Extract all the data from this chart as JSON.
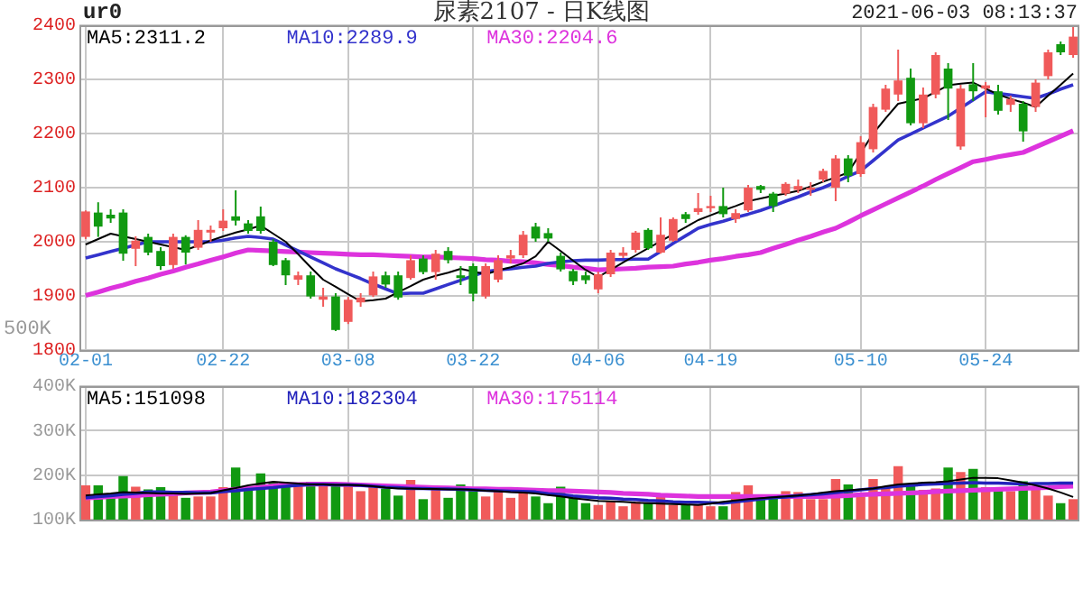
{
  "chart_data": [
    {
      "type": "candlestick",
      "title": "尿素2107 - 日K线图",
      "subtitle": "ur0",
      "annotations": [
        "2021-06-03 08:13:37",
        "500K"
      ],
      "categories": [
        "02-01",
        null,
        null,
        null,
        null,
        null,
        null,
        null,
        null,
        null,
        null,
        "02-22",
        null,
        null,
        null,
        null,
        null,
        null,
        null,
        null,
        null,
        "03-08",
        null,
        null,
        null,
        null,
        null,
        null,
        null,
        null,
        null,
        "03-22",
        null,
        null,
        null,
        null,
        null,
        null,
        null,
        null,
        null,
        "04-06",
        null,
        null,
        null,
        null,
        null,
        null,
        null,
        null,
        "04-19",
        null,
        null,
        null,
        null,
        null,
        null,
        null,
        null,
        null,
        null,
        null,
        "05-10",
        null,
        null,
        null,
        null,
        null,
        null,
        null,
        null,
        null,
        "05-24",
        null,
        null,
        null,
        null,
        null,
        null,
        null
      ],
      "ohlc": [
        [
          2009,
          2058,
          2005,
          2056
        ],
        [
          2054,
          2073,
          2009,
          2028
        ],
        [
          2050,
          2060,
          2035,
          2043
        ],
        [
          2054,
          2060,
          1965,
          1978
        ],
        [
          1987,
          2010,
          1955,
          2002
        ],
        [
          2009,
          2015,
          1975,
          1980
        ],
        [
          1983,
          1990,
          1948,
          1955
        ],
        [
          1957,
          2015,
          1950,
          2009
        ],
        [
          2009,
          2012,
          1958,
          1980
        ],
        [
          1989,
          2040,
          1985,
          2022
        ],
        [
          2017,
          2030,
          2000,
          2022
        ],
        [
          2025,
          2060,
          2020,
          2039
        ],
        [
          2047,
          2095,
          2030,
          2039
        ],
        [
          2034,
          2040,
          2015,
          2020
        ],
        [
          2047,
          2065,
          2015,
          2020
        ],
        [
          2000,
          2005,
          1955,
          1957
        ],
        [
          1966,
          1970,
          1920,
          1938
        ],
        [
          1930,
          1945,
          1920,
          1938
        ],
        [
          1938,
          1945,
          1895,
          1899
        ],
        [
          1893,
          1915,
          1880,
          1899
        ],
        [
          1899,
          1905,
          1835,
          1837
        ],
        [
          1852,
          1898,
          1848,
          1893
        ],
        [
          1888,
          1905,
          1880,
          1897
        ],
        [
          1901,
          1945,
          1898,
          1936
        ],
        [
          1938,
          1945,
          1915,
          1921
        ],
        [
          1938,
          1945,
          1893,
          1897
        ],
        [
          1933,
          1975,
          1930,
          1966
        ],
        [
          1969,
          1975,
          1940,
          1944
        ],
        [
          1944,
          1985,
          1930,
          1978
        ],
        [
          1983,
          1990,
          1960,
          1966
        ],
        [
          1938,
          1955,
          1920,
          1933
        ],
        [
          1955,
          1960,
          1890,
          1904
        ],
        [
          1899,
          1960,
          1895,
          1955
        ],
        [
          1930,
          1975,
          1925,
          1966
        ],
        [
          1969,
          1985,
          1960,
          1975
        ],
        [
          1975,
          2020,
          1970,
          2013
        ],
        [
          2028,
          2035,
          2000,
          2006
        ],
        [
          2016,
          2025,
          2000,
          2006
        ],
        [
          1974,
          1980,
          1945,
          1949
        ],
        [
          1946,
          1950,
          1920,
          1927
        ],
        [
          1938,
          1945,
          1922,
          1929
        ],
        [
          1912,
          1945,
          1905,
          1940
        ],
        [
          1940,
          1985,
          1935,
          1980
        ],
        [
          1974,
          1990,
          1970,
          1980
        ],
        [
          1985,
          2020,
          1980,
          2017
        ],
        [
          2022,
          2025,
          1985,
          1988
        ],
        [
          1980,
          2045,
          1978,
          2013
        ],
        [
          2002,
          2045,
          2000,
          2042
        ],
        [
          2051,
          2055,
          2035,
          2042
        ],
        [
          2055,
          2090,
          2050,
          2062
        ],
        [
          2062,
          2085,
          2055,
          2066
        ],
        [
          2066,
          2100,
          2045,
          2051
        ],
        [
          2042,
          2060,
          2035,
          2053
        ],
        [
          2058,
          2105,
          2055,
          2100
        ],
        [
          2103,
          2105,
          2090,
          2096
        ],
        [
          2089,
          2092,
          2055,
          2066
        ],
        [
          2089,
          2110,
          2085,
          2107
        ],
        [
          2096,
          2115,
          2090,
          2103
        ],
        [
          2096,
          2110,
          2085,
          2100
        ],
        [
          2115,
          2135,
          2110,
          2131
        ],
        [
          2100,
          2160,
          2075,
          2154
        ],
        [
          2154,
          2160,
          2110,
          2122
        ],
        [
          2125,
          2195,
          2120,
          2184
        ],
        [
          2171,
          2255,
          2165,
          2249
        ],
        [
          2244,
          2290,
          2240,
          2283
        ],
        [
          2272,
          2355,
          2260,
          2298
        ],
        [
          2303,
          2320,
          2215,
          2219
        ],
        [
          2219,
          2285,
          2210,
          2272
        ],
        [
          2272,
          2350,
          2265,
          2345
        ],
        [
          2320,
          2330,
          2225,
          2283
        ],
        [
          2176,
          2290,
          2170,
          2283
        ],
        [
          2291,
          2330,
          2260,
          2278
        ],
        [
          2283,
          2295,
          2230,
          2289
        ],
        [
          2278,
          2290,
          2235,
          2242
        ],
        [
          2253,
          2270,
          2240,
          2264
        ],
        [
          2255,
          2260,
          2185,
          2204
        ],
        [
          2249,
          2300,
          2240,
          2294
        ],
        [
          2306,
          2355,
          2300,
          2350
        ],
        [
          2365,
          2370,
          2345,
          2350
        ],
        [
          2345,
          2400,
          2340,
          2379
        ]
      ],
      "colors": [
        "#f05a5a",
        "#119911",
        "#119911",
        "#119911",
        "#f05a5a",
        "#119911",
        "#119911",
        "#f05a5a",
        "#119911",
        "#f05a5a",
        "#f05a5a",
        "#f05a5a",
        "#119911",
        "#119911",
        "#119911",
        "#119911",
        "#119911",
        "#f05a5a",
        "#119911",
        "#f05a5a",
        "#119911",
        "#f05a5a",
        "#f05a5a",
        "#f05a5a",
        "#119911",
        "#119911",
        "#f05a5a",
        "#119911",
        "#f05a5a",
        "#119911",
        "#119911",
        "#119911",
        "#f05a5a",
        "#f05a5a",
        "#f05a5a",
        "#f05a5a",
        "#119911",
        "#119911",
        "#119911",
        "#119911",
        "#119911",
        "#f05a5a",
        "#f05a5a",
        "#f05a5a",
        "#f05a5a",
        "#119911",
        "#f05a5a",
        "#f05a5a",
        "#119911",
        "#f05a5a",
        "#f05a5a",
        "#119911",
        "#f05a5a",
        "#f05a5a",
        "#119911",
        "#119911",
        "#f05a5a",
        "#f05a5a",
        "#f05a5a",
        "#f05a5a",
        "#f05a5a",
        "#119911",
        "#f05a5a",
        "#f05a5a",
        "#f05a5a",
        "#f05a5a",
        "#119911",
        "#f05a5a",
        "#f05a5a",
        "#119911",
        "#f05a5a",
        "#119911",
        "#f05a5a",
        "#119911",
        "#f05a5a",
        "#119911",
        "#f05a5a",
        "#f05a5a",
        "#119911",
        "#f05a5a"
      ],
      "series": [
        {
          "name": "MA5:2311.2",
          "type": "line",
          "color": "#000000",
          "values": [
            1995,
            2005,
            2015,
            2010,
            2005,
            2000,
            1995,
            1990,
            1985,
            1993,
            2002,
            2010,
            2017,
            2023,
            2030,
            2015,
            2000,
            1977,
            1953,
            1930,
            1917,
            1903,
            1890,
            1892,
            1895,
            1907,
            1918,
            1930,
            1937,
            1943,
            1950,
            1945,
            1940,
            1947,
            1953,
            1960,
            1973,
            2000,
            1983,
            1965,
            1948,
            1935,
            1948,
            1962,
            1975,
            1988,
            2001,
            2014,
            2027,
            2040,
            2049,
            2058,
            2066,
            2075,
            2080,
            2085,
            2089,
            2094,
            2102,
            2111,
            2119,
            2128,
            2164,
            2200,
            2228,
            2255,
            2260,
            2265,
            2277,
            2289,
            2292,
            2294,
            2283,
            2272,
            2264,
            2257,
            2249,
            2270,
            2290,
            2311
          ]
        },
        {
          "name": "MA10:2289.9",
          "type": "line",
          "color": "#3333cc",
          "values": [
            1970,
            1976,
            1982,
            1988,
            1994,
            2000,
            2000,
            2000,
            2000,
            2000,
            2000,
            2003,
            2007,
            2010,
            2008,
            2005,
            1994,
            1983,
            1972,
            1961,
            1950,
            1941,
            1932,
            1922,
            1913,
            1904,
            1905,
            1905,
            1913,
            1921,
            1929,
            1937,
            1945,
            1948,
            1950,
            1953,
            1955,
            1960,
            1963,
            1965,
            1966,
            1966,
            1967,
            1967,
            1968,
            1968,
            1982,
            1997,
            2011,
            2025,
            2032,
            2038,
            2045,
            2051,
            2058,
            2066,
            2075,
            2083,
            2092,
            2100,
            2110,
            2121,
            2131,
            2150,
            2169,
            2188,
            2199,
            2210,
            2221,
            2232,
            2247,
            2262,
            2277,
            2274,
            2271,
            2268,
            2265,
            2273,
            2282,
            2290
          ]
        },
        {
          "name": "MA30:2204.6",
          "type": "line",
          "color": "#dd33dd",
          "values": [
            1901,
            1907,
            1914,
            1920,
            1927,
            1933,
            1940,
            1946,
            1953,
            1959,
            1966,
            1972,
            1979,
            1985,
            1984,
            1983,
            1982,
            1981,
            1980,
            1979,
            1978,
            1977,
            1976,
            1976,
            1975,
            1974,
            1973,
            1972,
            1972,
            1971,
            1970,
            1969,
            1967,
            1966,
            1964,
            1963,
            1961,
            1958,
            1956,
            1953,
            1951,
            1948,
            1949,
            1950,
            1951,
            1953,
            1954,
            1955,
            1959,
            1962,
            1966,
            1969,
            1973,
            1976,
            1980,
            1988,
            1995,
            2003,
            2010,
            2018,
            2025,
            2036,
            2048,
            2059,
            2070,
            2081,
            2092,
            2103,
            2115,
            2126,
            2137,
            2148,
            2152,
            2157,
            2161,
            2165,
            2175,
            2185,
            2195,
            2205
          ]
        }
      ],
      "ylim": [
        1800,
        2400
      ],
      "yticks": [
        1800,
        1900,
        2000,
        2100,
        2200,
        2300,
        2400
      ],
      "grid": true,
      "legend": "top",
      "marker": "none"
    },
    {
      "type": "bar",
      "tick_labels": "y",
      "categories": [
        null,
        null,
        null,
        null,
        null,
        null,
        null,
        null,
        null,
        null,
        null,
        null,
        null,
        null,
        null,
        null,
        null,
        null,
        null,
        null,
        null,
        null,
        null,
        null,
        null,
        null,
        null,
        null,
        null,
        null,
        null,
        null,
        null,
        null,
        null,
        null,
        null,
        null,
        null,
        null,
        null,
        null,
        null,
        null,
        null,
        null,
        null,
        null,
        null,
        null,
        null,
        null,
        null,
        null,
        null,
        null,
        null,
        null,
        null,
        null,
        null,
        null,
        null,
        null,
        null,
        null,
        null,
        null,
        null,
        null,
        null,
        null,
        null,
        null,
        null,
        null,
        null,
        null,
        null,
        null
      ],
      "values": [
        177000,
        177000,
        149000,
        198000,
        174000,
        168000,
        173000,
        158000,
        149000,
        152000,
        152000,
        173000,
        217000,
        168000,
        204000,
        185000,
        180000,
        183000,
        185000,
        180000,
        183000,
        177000,
        164000,
        179000,
        170000,
        154000,
        189000,
        146000,
        170000,
        149000,
        179000,
        173000,
        152000,
        164000,
        149000,
        168000,
        152000,
        137000,
        174000,
        154000,
        137000,
        133000,
        140000,
        130000,
        140000,
        137000,
        158000,
        133000,
        133000,
        133000,
        130000,
        130000,
        162000,
        177000,
        152000,
        152000,
        164000,
        162000,
        146000,
        146000,
        191000,
        179000,
        152000,
        191000,
        173000,
        220000,
        177000,
        167000,
        170000,
        217000,
        207000,
        214000,
        173000,
        167000,
        164000,
        186000,
        170000,
        154000,
        137000,
        146000
      ],
      "colors": [
        "#f05a5a",
        "#119911",
        "#119911",
        "#119911",
        "#f05a5a",
        "#119911",
        "#119911",
        "#f05a5a",
        "#119911",
        "#f05a5a",
        "#f05a5a",
        "#f05a5a",
        "#119911",
        "#119911",
        "#119911",
        "#119911",
        "#119911",
        "#f05a5a",
        "#119911",
        "#f05a5a",
        "#119911",
        "#f05a5a",
        "#f05a5a",
        "#f05a5a",
        "#119911",
        "#119911",
        "#f05a5a",
        "#119911",
        "#f05a5a",
        "#119911",
        "#119911",
        "#119911",
        "#f05a5a",
        "#f05a5a",
        "#f05a5a",
        "#f05a5a",
        "#119911",
        "#119911",
        "#119911",
        "#119911",
        "#119911",
        "#f05a5a",
        "#f05a5a",
        "#f05a5a",
        "#f05a5a",
        "#119911",
        "#f05a5a",
        "#f05a5a",
        "#119911",
        "#f05a5a",
        "#f05a5a",
        "#119911",
        "#f05a5a",
        "#f05a5a",
        "#119911",
        "#119911",
        "#f05a5a",
        "#f05a5a",
        "#f05a5a",
        "#f05a5a",
        "#f05a5a",
        "#119911",
        "#f05a5a",
        "#f05a5a",
        "#f05a5a",
        "#f05a5a",
        "#119911",
        "#f05a5a",
        "#f05a5a",
        "#119911",
        "#f05a5a",
        "#119911",
        "#f05a5a",
        "#119911",
        "#f05a5a",
        "#119911",
        "#f05a5a",
        "#f05a5a",
        "#119911",
        "#f05a5a"
      ],
      "series": [
        {
          "name": "MA5:151098",
          "type": "line",
          "color": "#000000",
          "values": [
            154000,
            157000,
            159000,
            162000,
            161000,
            160000,
            159000,
            159000,
            158000,
            159000,
            160000,
            166000,
            171000,
            177000,
            181000,
            185000,
            183000,
            181000,
            179000,
            179000,
            178000,
            178000,
            177000,
            175000,
            172000,
            170000,
            170000,
            169000,
            169000,
            168000,
            168000,
            167000,
            165000,
            164000,
            162000,
            161000,
            159000,
            155000,
            152000,
            148000,
            145000,
            142000,
            141000,
            140000,
            138000,
            137000,
            136000,
            135000,
            134000,
            133000,
            136000,
            140000,
            143000,
            146000,
            148000,
            150000,
            152000,
            154000,
            157000,
            161000,
            164000,
            166000,
            168000,
            170000,
            175000,
            179000,
            181000,
            183000,
            184000,
            186000,
            190000,
            194000,
            194000,
            193000,
            188000,
            183000,
            177000,
            170000,
            161000,
            151000
          ]
        },
        {
          "name": "MA10:182304",
          "type": "line",
          "color": "#2222bb",
          "values": [
            149000,
            152000,
            154000,
            157000,
            159000,
            162000,
            162000,
            161000,
            161000,
            160000,
            160000,
            163000,
            165000,
            168000,
            170000,
            172000,
            175000,
            177000,
            179000,
            179000,
            178000,
            178000,
            177000,
            175000,
            173000,
            172000,
            170000,
            170000,
            169000,
            169000,
            168000,
            167000,
            166000,
            165000,
            164000,
            163000,
            162000,
            158000,
            156000,
            153000,
            151000,
            149000,
            148000,
            146000,
            145000,
            143000,
            142000,
            140000,
            139000,
            139000,
            138000,
            137000,
            140000,
            143000,
            146000,
            149000,
            151000,
            154000,
            156000,
            158000,
            161000,
            164000,
            167000,
            170000,
            172000,
            175000,
            177000,
            179000,
            180000,
            181000,
            182000,
            183000,
            182000,
            182000,
            181000,
            180000,
            181000,
            181000,
            182000,
            182000
          ]
        },
        {
          "name": "MA30:175114",
          "type": "line",
          "color": "#dd33dd",
          "values": [
            149000,
            150000,
            152000,
            153000,
            154000,
            156000,
            157000,
            158000,
            160000,
            161000,
            162000,
            165000,
            168000,
            170000,
            173000,
            176000,
            179000,
            179000,
            180000,
            180000,
            180000,
            179000,
            178000,
            177000,
            176000,
            175000,
            174000,
            173000,
            172000,
            171000,
            170000,
            169000,
            169000,
            168000,
            168000,
            167000,
            166000,
            165000,
            165000,
            164000,
            163000,
            162000,
            161000,
            159000,
            158000,
            157000,
            155000,
            154000,
            153000,
            152000,
            152000,
            152000,
            152000,
            152000,
            152000,
            152000,
            152000,
            152000,
            152000,
            152000,
            153000,
            154000,
            156000,
            157000,
            158000,
            159000,
            160000,
            161000,
            163000,
            164000,
            165000,
            166000,
            167000,
            168000,
            169000,
            170000,
            171000,
            172000,
            174000,
            175000
          ]
        }
      ],
      "ylim": [
        100000,
        400000
      ],
      "yticks": [
        {
          "value": 100000,
          "label": "100K"
        },
        {
          "value": 200000,
          "label": "200K"
        },
        {
          "value": 300000,
          "label": "300K"
        },
        {
          "value": 400000,
          "label": "400K"
        }
      ],
      "grid": true,
      "legend": "top",
      "marker": "none"
    }
  ]
}
